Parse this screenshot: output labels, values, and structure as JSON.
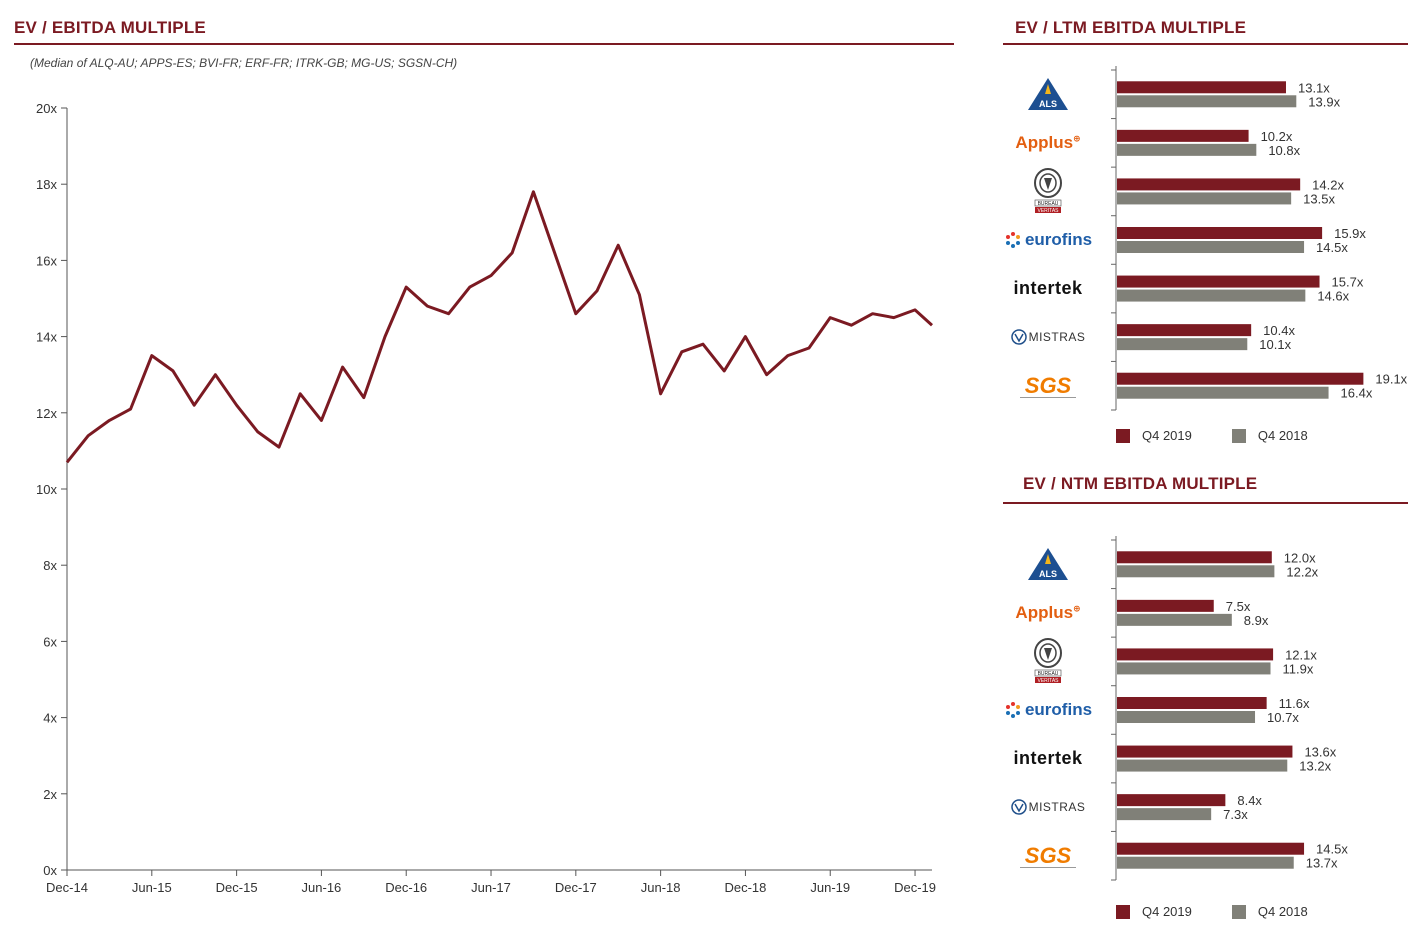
{
  "colors": {
    "accent": "#7b1a22",
    "q4_2019": "#7b1a22",
    "q4_2018": "#808078",
    "axis": "#555555"
  },
  "left": {
    "title": "EV / EBITDA MULTIPLE",
    "subtitle": "(Median of ALQ-AU; APPS-ES; BVI-FR; ERF-FR; ITRK-GB; MG-US; SGSN-CH)"
  },
  "ltm": {
    "title": "EV / LTM EBITDA MULTIPLE"
  },
  "ntm": {
    "title": "EV / NTM EBITDA MULTIPLE"
  },
  "legend": {
    "q4_2019": "Q4 2019",
    "q4_2018": "Q4 2018"
  },
  "logos": {
    "als": "ALS",
    "applus": "Applus",
    "bv_top": "BUREAU",
    "bv_bottom": "VERITAS",
    "eurofins": "eurofins",
    "intertek": "intertek",
    "mistras": "MISTRAS",
    "sgs": "SGS"
  },
  "chart_data": [
    {
      "type": "line",
      "title": "EV / EBITDA MULTIPLE",
      "xlabel": "",
      "ylabel": "",
      "ylim": [
        0,
        20
      ],
      "yticks": [
        "0x",
        "2x",
        "4x",
        "6x",
        "8x",
        "10x",
        "12x",
        "14x",
        "16x",
        "18x",
        "20x"
      ],
      "xticks": [
        "Dec-14",
        "Jun-15",
        "Dec-15",
        "Jun-16",
        "Dec-16",
        "Jun-17",
        "Dec-17",
        "Jun-18",
        "Dec-18",
        "Jun-19",
        "Dec-19"
      ],
      "x": [
        0,
        0.25,
        0.5,
        0.75,
        1,
        1.25,
        1.5,
        1.75,
        2,
        2.25,
        2.5,
        2.75,
        3,
        3.25,
        3.5,
        3.75,
        4,
        4.25,
        4.5,
        4.75,
        5,
        5.25,
        5.5,
        5.75,
        6,
        6.25,
        6.5,
        6.75,
        7,
        7.25,
        7.5,
        7.75,
        8,
        8.25,
        8.5,
        8.75,
        9,
        9.25,
        9.5,
        9.75,
        10,
        10.2
      ],
      "series": [
        {
          "name": "Median EV/EBITDA",
          "values": [
            10.7,
            11.4,
            11.8,
            12.1,
            13.5,
            13.1,
            12.2,
            13.0,
            12.2,
            11.5,
            11.1,
            12.5,
            11.8,
            13.2,
            12.4,
            14.0,
            15.3,
            14.8,
            14.6,
            15.3,
            15.6,
            16.2,
            17.8,
            16.2,
            14.6,
            15.2,
            16.4,
            15.1,
            12.5,
            13.6,
            13.8,
            13.1,
            14.0,
            13.0,
            13.5,
            13.7,
            14.5,
            14.3,
            14.6,
            14.5,
            14.7,
            14.3
          ]
        }
      ]
    },
    {
      "type": "bar",
      "title": "EV / LTM EBITDA MULTIPLE",
      "categories": [
        "ALS",
        "Applus",
        "Bureau Veritas",
        "Eurofins",
        "Intertek",
        "Mistras",
        "SGS"
      ],
      "xlim": [
        0,
        20
      ],
      "series": [
        {
          "name": "Q4 2019",
          "values": [
            13.1,
            10.2,
            14.2,
            15.9,
            15.7,
            10.4,
            19.1
          ],
          "labels": [
            "13.1x",
            "10.2x",
            "14.2x",
            "15.9x",
            "15.7x",
            "10.4x",
            "19.1x"
          ]
        },
        {
          "name": "Q4 2018",
          "values": [
            13.9,
            10.8,
            13.5,
            14.5,
            14.6,
            10.1,
            16.4
          ],
          "labels": [
            "13.9x",
            "10.8x",
            "13.5x",
            "14.5x",
            "14.6x",
            "10.1x",
            "16.4x"
          ]
        }
      ]
    },
    {
      "type": "bar",
      "title": "EV / NTM EBITDA MULTIPLE",
      "categories": [
        "ALS",
        "Applus",
        "Bureau Veritas",
        "Eurofins",
        "Intertek",
        "Mistras",
        "SGS"
      ],
      "xlim": [
        0,
        20
      ],
      "series": [
        {
          "name": "Q4 2019",
          "values": [
            12.0,
            7.5,
            12.1,
            11.6,
            13.6,
            8.4,
            14.5
          ],
          "labels": [
            "12.0x",
            "7.5x",
            "12.1x",
            "11.6x",
            "13.6x",
            "8.4x",
            "14.5x"
          ]
        },
        {
          "name": "Q4 2018",
          "values": [
            12.2,
            8.9,
            11.9,
            10.7,
            13.2,
            7.3,
            13.7
          ],
          "labels": [
            "12.2x",
            "8.9x",
            "11.9x",
            "10.7x",
            "13.2x",
            "7.3x",
            "13.7x"
          ]
        }
      ]
    }
  ]
}
